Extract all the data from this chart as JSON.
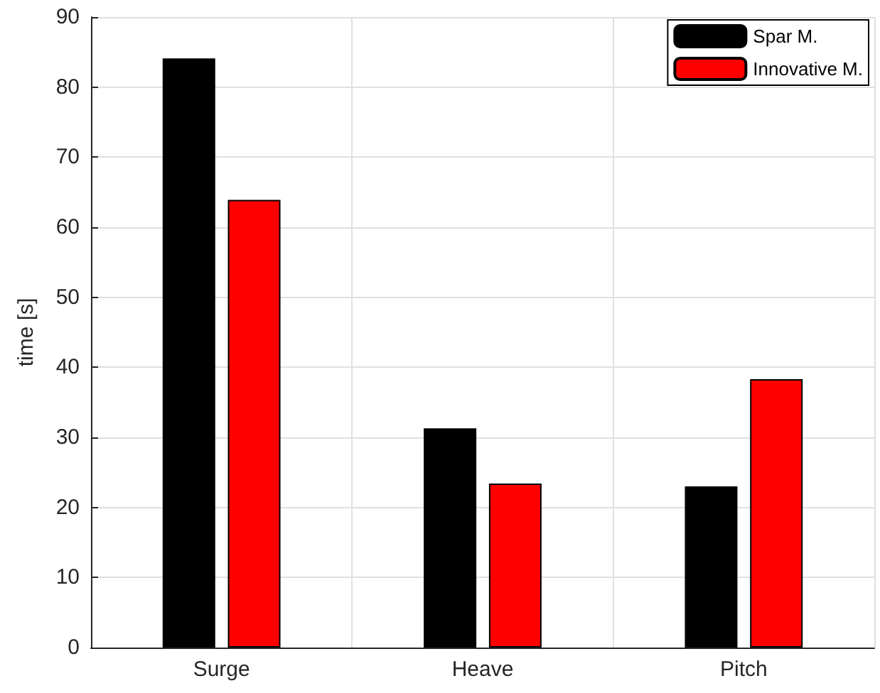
{
  "chart_data": {
    "type": "bar",
    "ylabel": "time [s]",
    "categories": [
      "Surge",
      "Heave",
      "Pitch"
    ],
    "series": [
      {
        "name": "Spar M.",
        "color": "#000000",
        "values": [
          84.1,
          31.3,
          23.0
        ]
      },
      {
        "name": "Innovative M.",
        "color": "#ff0000",
        "values": [
          63.9,
          23.4,
          38.3
        ]
      }
    ],
    "ylim": [
      0,
      90
    ],
    "yticks": [
      0,
      10,
      20,
      30,
      40,
      50,
      60,
      70,
      80,
      90
    ],
    "grid": true,
    "legend": "top right"
  }
}
